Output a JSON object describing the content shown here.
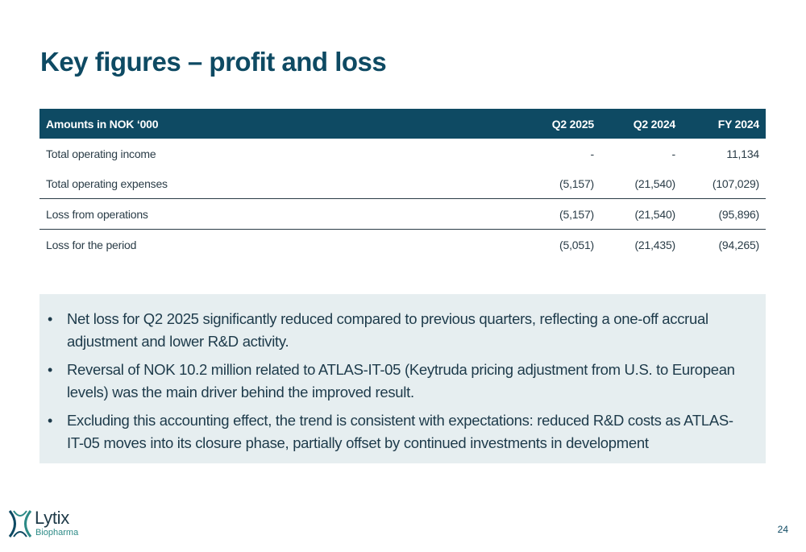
{
  "page": {
    "title": "Key figures – profit and loss",
    "page_number": "24"
  },
  "table": {
    "headers": [
      "Amounts in NOK ‘000",
      "Q2 2025",
      "Q2 2024",
      "FY 2024"
    ],
    "rows": [
      {
        "label": "Total operating income",
        "q2_2025": "-",
        "q2_2024": "-",
        "fy_2024": "11,134"
      },
      {
        "label": "Total operating expenses",
        "q2_2025": "(5,157)",
        "q2_2024": "(21,540)",
        "fy_2024": "(107,029)"
      },
      {
        "label": "Loss from operations",
        "q2_2025": "(5,157)",
        "q2_2024": "(21,540)",
        "fy_2024": "(95,896)"
      },
      {
        "label": "Loss for the period",
        "q2_2025": "(5,051)",
        "q2_2024": "(21,435)",
        "fy_2024": "(94,265)"
      }
    ]
  },
  "notes": {
    "bullet": "•",
    "items": [
      "Net loss for Q2 2025 significantly reduced compared to previous quarters, reflecting a one-off accrual adjustment and lower R&D activity.",
      "Reversal of NOK 10.2 million related to ATLAS-IT-05 (Keytruda pricing adjustment from U.S. to European levels) was the main driver behind the improved result.",
      "Excluding this accounting effect, the trend is consistent with expectations: reduced R&D costs as ATLAS-IT-05 moves into its closure phase, partially offset by continued investments in development"
    ]
  },
  "logo": {
    "name": "Lytix",
    "subtitle": "Biopharma",
    "icon": "lytix-logo-mark",
    "colors": {
      "primary": "#0e4a63",
      "accent": "#2c8a86"
    }
  }
}
